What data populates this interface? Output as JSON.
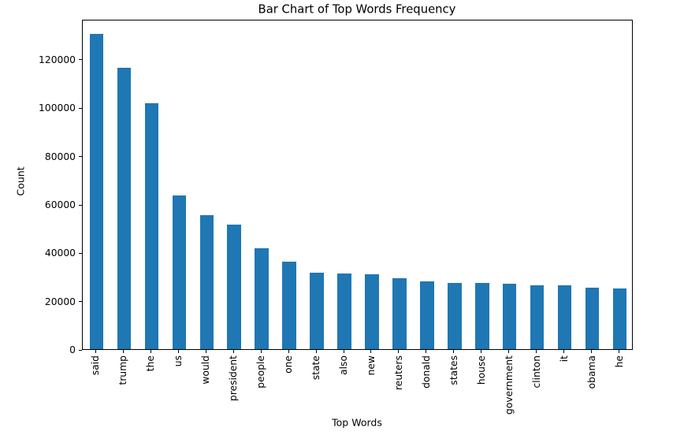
{
  "chart_data": {
    "type": "bar",
    "title": "Bar Chart of Top Words Frequency",
    "xlabel": "Top Words",
    "ylabel": "Count",
    "categories": [
      "said",
      "trump",
      "the",
      "us",
      "would",
      "president",
      "people",
      "one",
      "state",
      "also",
      "new",
      "reuters",
      "donald",
      "states",
      "house",
      "government",
      "clinton",
      "it",
      "obama",
      "he"
    ],
    "values": [
      130300,
      116500,
      101700,
      63500,
      55400,
      51600,
      41800,
      36100,
      31500,
      31400,
      31100,
      29400,
      27900,
      27400,
      27300,
      27100,
      26400,
      26300,
      25300,
      25000
    ],
    "ylim": [
      0,
      136600
    ],
    "yticks": [
      0,
      20000,
      40000,
      60000,
      80000,
      100000,
      120000
    ],
    "ytick_labels": [
      "0",
      "20000",
      "40000",
      "60000",
      "80000",
      "100000",
      "120000"
    ],
    "xtick_rotation": 90,
    "bar_color": "#1f77b4",
    "bar_width_ratio": 0.5,
    "grid": false,
    "legend": "none",
    "background_color": "#ffffff"
  }
}
